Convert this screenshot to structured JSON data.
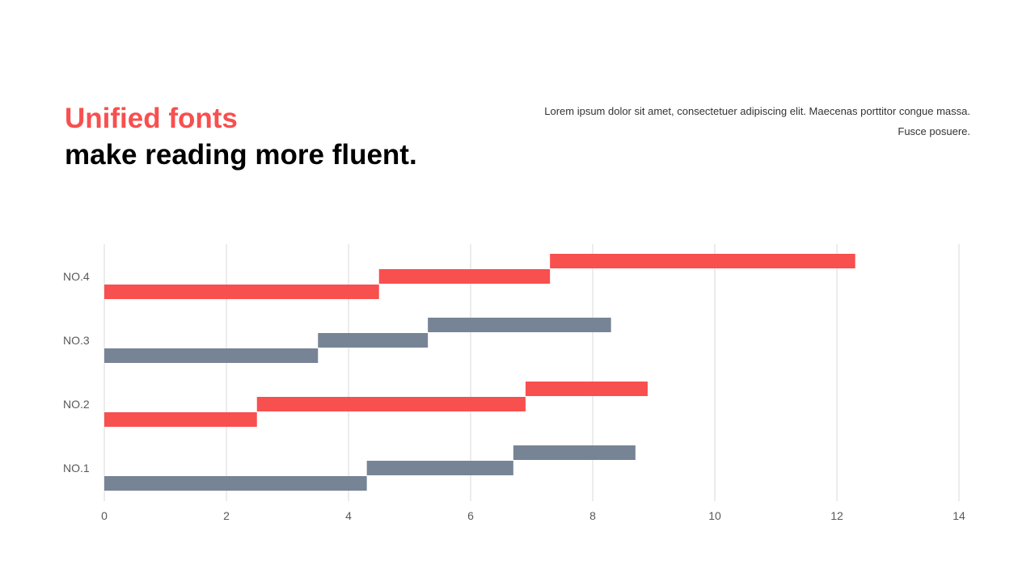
{
  "heading": {
    "accent": "Unified fonts",
    "main": "make reading more fluent."
  },
  "description": "Lorem ipsum dolor sit amet, consectetuer adipiscing elit. Maecenas porttitor congue massa. Fusce posuere.",
  "colors": {
    "accent": "#f84f4f",
    "slate": "#778495",
    "grid": "#d9d9d9"
  },
  "chart_data": {
    "type": "bar",
    "orientation": "horizontal",
    "stacked": false,
    "categories": [
      "NO.1",
      "NO.2",
      "NO.3",
      "NO.4"
    ],
    "series": [
      {
        "values": [
          4.3,
          2.5,
          3.5,
          4.5
        ]
      },
      {
        "values": [
          6.7,
          6.9,
          5.3,
          7.3
        ]
      },
      {
        "values": [
          8.7,
          8.9,
          8.3,
          12.3
        ]
      }
    ],
    "start_values": [
      [
        0,
        0,
        0,
        0
      ],
      [
        4.3,
        2.5,
        3.5,
        4.5
      ],
      [
        6.7,
        6.9,
        5.3,
        7.3
      ]
    ],
    "category_colors": [
      "#778495",
      "#f84f4f",
      "#778495",
      "#f84f4f"
    ],
    "xlim": [
      0,
      14
    ],
    "xticks": [
      0,
      2,
      4,
      6,
      8,
      10,
      12,
      14
    ],
    "grid": "vertical",
    "legend": "none",
    "title": "",
    "xlabel": "",
    "ylabel": ""
  }
}
